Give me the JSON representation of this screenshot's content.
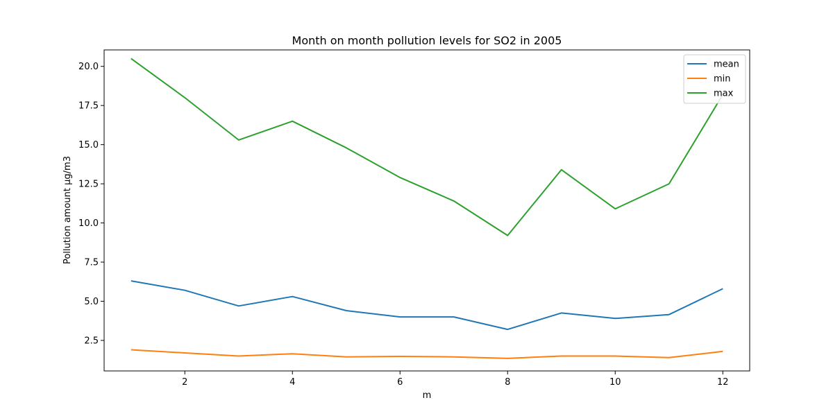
{
  "chart_data": {
    "type": "line",
    "title": "Month on month pollution levels for SO2 in 2005",
    "xlabel": "m",
    "ylabel": "Pollution amount µg/m3",
    "x": [
      1,
      2,
      3,
      4,
      5,
      6,
      7,
      8,
      9,
      10,
      11,
      12
    ],
    "xlim": [
      0.5,
      12.5
    ],
    "ylim": [
      0.55,
      21.05
    ],
    "xticks": [
      2,
      4,
      6,
      8,
      10,
      12
    ],
    "yticks": [
      2.5,
      5.0,
      7.5,
      10.0,
      12.5,
      15.0,
      17.5,
      20.0
    ],
    "ytick_labels": [
      "2.5",
      "5.0",
      "7.5",
      "10.0",
      "12.5",
      "15.0",
      "17.5",
      "20.0"
    ],
    "grid": false,
    "legend_position": "top-right",
    "series": [
      {
        "name": "mean",
        "color": "#1f77b4",
        "values": [
          6.3,
          5.7,
          4.7,
          5.3,
          4.4,
          4.0,
          4.0,
          3.2,
          4.25,
          3.9,
          4.15,
          5.8
        ]
      },
      {
        "name": "min",
        "color": "#ff7f0e",
        "values": [
          1.9,
          1.7,
          1.5,
          1.65,
          1.45,
          1.48,
          1.45,
          1.35,
          1.5,
          1.5,
          1.4,
          1.8
        ]
      },
      {
        "name": "max",
        "color": "#2ca02c",
        "values": [
          20.5,
          18.0,
          15.3,
          16.5,
          14.8,
          12.9,
          11.4,
          9.2,
          13.4,
          10.9,
          12.5,
          18.2
        ]
      }
    ]
  }
}
